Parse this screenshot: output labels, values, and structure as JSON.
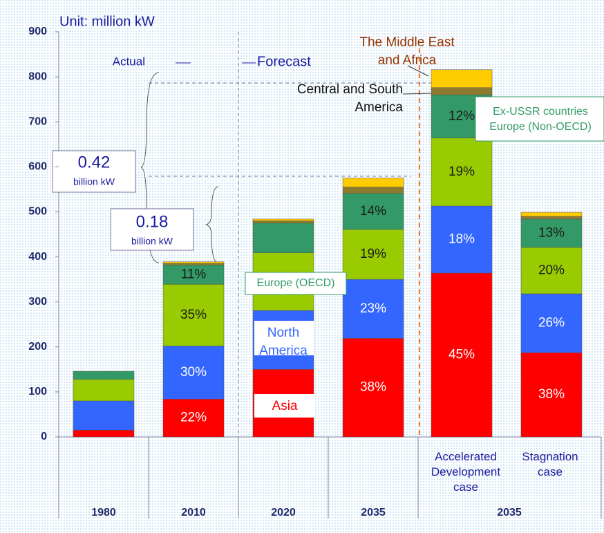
{
  "chart_data": {
    "type": "stacked-bar",
    "unit_label": "Unit: million kW",
    "actual_label": "Actual",
    "forecast_label": "Forecast",
    "categories": [
      "1980",
      "2010",
      "2020",
      "2035",
      "Accelerated\nDevelopment\ncase",
      "Stagnation\ncase"
    ],
    "group_label": "2035",
    "ylim": [
      0,
      900
    ],
    "yticks": [
      0,
      100,
      200,
      300,
      400,
      500,
      600,
      700,
      800,
      900
    ],
    "series": [
      {
        "name": "Asia",
        "color": "#ff0000",
        "values": [
          15,
          84,
          150,
          219,
          364,
          187
        ],
        "value_labels": [
          null,
          "22%",
          null,
          "38%",
          "45%",
          "38%"
        ]
      },
      {
        "name": "North\nAmerica",
        "color": "#3366ff",
        "values": [
          65,
          118,
          131,
          131,
          149,
          131
        ],
        "value_labels": [
          null,
          "30%",
          null,
          "23%",
          "18%",
          "26%"
        ]
      },
      {
        "name": "Europe (OECD)",
        "color": "#99cc00",
        "values": [
          48,
          137,
          128,
          111,
          151,
          103
        ],
        "value_labels": [
          null,
          "35%",
          null,
          "19%",
          "19%",
          "20%"
        ]
      },
      {
        "name": "Ex-USSR countries\nEurope (Non-OECD)",
        "color": "#339966",
        "values": [
          18,
          43,
          66,
          80,
          96,
          63
        ],
        "value_labels": [
          null,
          "11%",
          null,
          "14%",
          "12%",
          "13%"
        ]
      },
      {
        "name": "Central and South\nAmerica",
        "color": "#8c7a2e",
        "values": [
          0,
          4,
          5,
          14,
          16,
          6
        ],
        "value_labels": [
          null,
          null,
          null,
          null,
          null,
          null
        ]
      },
      {
        "name": "The Middle East\nand Africa",
        "color": "#ffcc00",
        "values": [
          0,
          3,
          4,
          20,
          40,
          9
        ],
        "value_labels": [
          null,
          null,
          null,
          null,
          null,
          null
        ]
      }
    ],
    "annotations": [
      {
        "value": "0.42",
        "unit": "billion kW"
      },
      {
        "value": "0.18",
        "unit": "billion kW"
      }
    ]
  }
}
